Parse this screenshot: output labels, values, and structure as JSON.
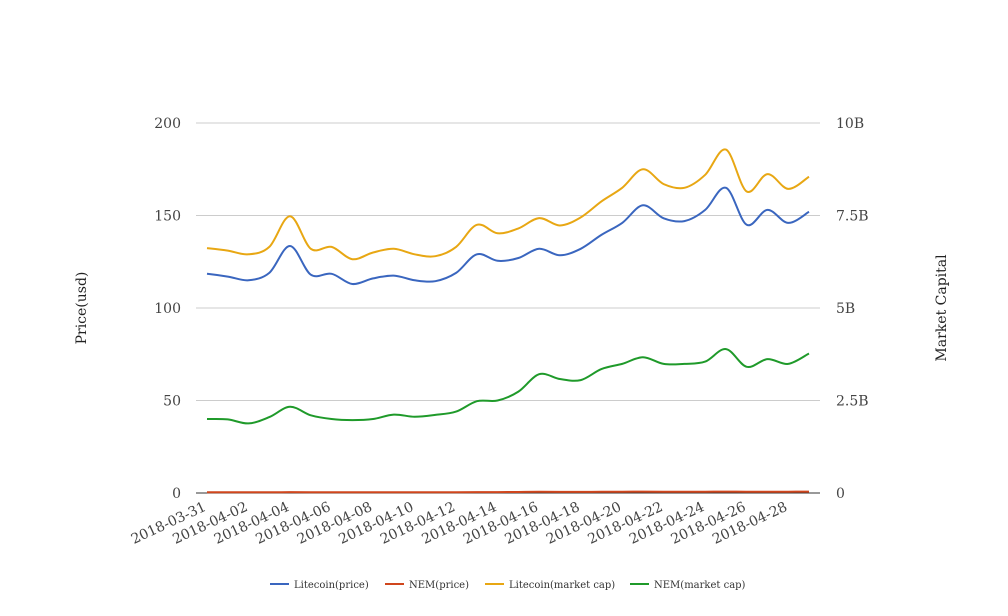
{
  "chart_data": {
    "type": "line",
    "title": "",
    "x": [
      "2018-03-31",
      "2018-04-01",
      "2018-04-02",
      "2018-04-03",
      "2018-04-04",
      "2018-04-05",
      "2018-04-06",
      "2018-04-07",
      "2018-04-08",
      "2018-04-09",
      "2018-04-10",
      "2018-04-11",
      "2018-04-12",
      "2018-04-13",
      "2018-04-14",
      "2018-04-15",
      "2018-04-16",
      "2018-04-17",
      "2018-04-18",
      "2018-04-19",
      "2018-04-20",
      "2018-04-21",
      "2018-04-22",
      "2018-04-23",
      "2018-04-24",
      "2018-04-25",
      "2018-04-26",
      "2018-04-27",
      "2018-04-28",
      "2018-04-29"
    ],
    "x_tick_labels": [
      "2018-03-31",
      "2018-04-02",
      "2018-04-04",
      "2018-04-06",
      "2018-04-08",
      "2018-04-10",
      "2018-04-12",
      "2018-04-14",
      "2018-04-16",
      "2018-04-18",
      "2018-04-20",
      "2018-04-22",
      "2018-04-24",
      "2018-04-26",
      "2018-04-28"
    ],
    "y_left": {
      "label": "Price(usd)",
      "ylim": [
        0,
        200
      ],
      "ticks": [
        0,
        50,
        100,
        150,
        200
      ],
      "tick_labels": [
        "0",
        "50",
        "100",
        "150",
        "200"
      ]
    },
    "y_right": {
      "label": "Market Capital",
      "ylim": [
        0,
        10000000000
      ],
      "ticks": [
        0,
        2500000000,
        5000000000,
        7500000000,
        10000000000
      ],
      "tick_labels": [
        "0",
        "2.5B",
        "5B",
        "7.5B",
        "10B"
      ]
    },
    "grid": true,
    "legend_position": "bottom",
    "series": [
      {
        "name": "Litecoin(price)",
        "axis": "left",
        "color": "#3a66bf",
        "values": [
          118.5,
          117,
          115,
          119,
          133.5,
          118,
          118.5,
          113,
          116,
          117.5,
          115,
          114.5,
          119,
          129,
          125.5,
          127,
          132,
          128.5,
          132,
          139.5,
          146,
          155.5,
          148.5,
          147,
          153,
          165,
          145,
          153,
          146,
          152
        ]
      },
      {
        "name": "NEM(price)",
        "axis": "left",
        "color": "#d0461d",
        "values": [
          0.4,
          0.4,
          0.38,
          0.41,
          0.46,
          0.42,
          0.4,
          0.39,
          0.4,
          0.42,
          0.41,
          0.42,
          0.44,
          0.5,
          0.5,
          0.55,
          0.64,
          0.61,
          0.61,
          0.67,
          0.7,
          0.73,
          0.7,
          0.7,
          0.71,
          0.78,
          0.68,
          0.72,
          0.7,
          0.75
        ]
      },
      {
        "name": "Litecoin(market cap)",
        "axis": "right",
        "color": "#e8a713",
        "values": [
          6620000000,
          6550000000,
          6450000000,
          6650000000,
          7480000000,
          6600000000,
          6650000000,
          6320000000,
          6500000000,
          6600000000,
          6450000000,
          6400000000,
          6650000000,
          7250000000,
          7020000000,
          7150000000,
          7430000000,
          7230000000,
          7450000000,
          7880000000,
          8250000000,
          8750000000,
          8350000000,
          8250000000,
          8600000000,
          9280000000,
          8150000000,
          8620000000,
          8220000000,
          8550000000
        ]
      },
      {
        "name": "NEM(market cap)",
        "axis": "right",
        "color": "#1f9a2a",
        "values": [
          2000000000,
          1990000000,
          1880000000,
          2050000000,
          2330000000,
          2100000000,
          2000000000,
          1970000000,
          2000000000,
          2120000000,
          2060000000,
          2110000000,
          2200000000,
          2480000000,
          2500000000,
          2740000000,
          3210000000,
          3080000000,
          3050000000,
          3350000000,
          3490000000,
          3670000000,
          3490000000,
          3490000000,
          3550000000,
          3890000000,
          3410000000,
          3620000000,
          3490000000,
          3770000000
        ]
      }
    ]
  }
}
